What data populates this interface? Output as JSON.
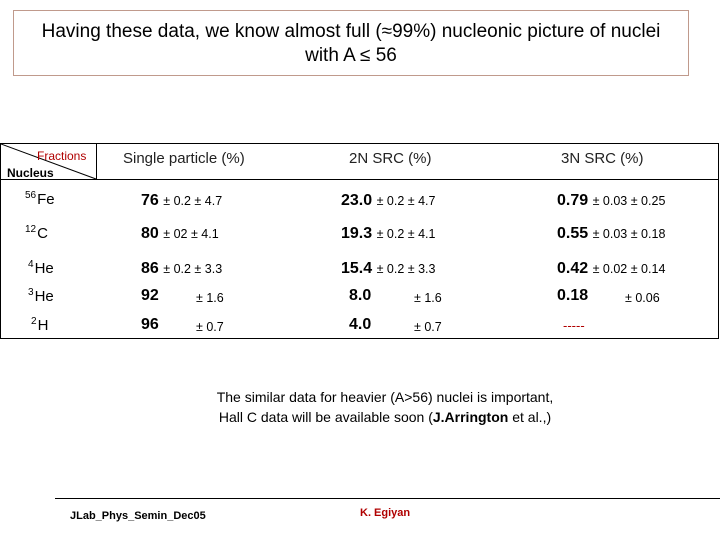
{
  "title": {
    "line1": "Having these data, we know almost full (≈99%) nucleonic picture of nuclei",
    "line2": "with A ≤ 56"
  },
  "table": {
    "corner": {
      "fractions_label": "Fractions",
      "nucleus_label": "Nucleus"
    },
    "headers": [
      "Single particle (%)",
      "2N SRC (%)",
      "3N SRC (%)"
    ],
    "rows": [
      {
        "mass": "56",
        "element": "Fe",
        "sp": {
          "value": "76",
          "err": "± 0.2 ± 4.7"
        },
        "src2": {
          "value": "23.0",
          "err": "± 0.2 ± 4.7"
        },
        "src3": {
          "value": "0.79",
          "err": "± 0.03 ± 0.25"
        }
      },
      {
        "mass": "12",
        "element": "C",
        "sp": {
          "value": "80",
          "err": "± 02 ± 4.1"
        },
        "src2": {
          "value": "19.3",
          "err": "± 0.2 ± 4.1"
        },
        "src3": {
          "value": "0.55",
          "err": "± 0.03 ± 0.18"
        }
      },
      {
        "mass": "4",
        "element": "He",
        "sp": {
          "value": "86",
          "err": "± 0.2 ± 3.3"
        },
        "src2": {
          "value": "15.4",
          "err": "± 0.2 ± 3.3"
        },
        "src3": {
          "value": "0.42",
          "err": "± 0.02 ± 0.14"
        }
      },
      {
        "mass": "3",
        "element": "He",
        "sp": {
          "value": "92",
          "err": "± 1.6"
        },
        "src2": {
          "value": "8.0",
          "err": "± 1.6"
        },
        "src3": {
          "value": "0.18",
          "err": "± 0.06"
        }
      },
      {
        "mass": "2",
        "element": "H",
        "sp": {
          "value": "96",
          "err": "± 0.7"
        },
        "src2": {
          "value": "4.0",
          "err": "± 0.7"
        },
        "src3": {
          "value": "-----",
          "err": ""
        }
      }
    ]
  },
  "note": {
    "line1": "The similar data for heavier (A>56) nuclei is  important,",
    "line2_prefix": "Hall C data will be  available soon (",
    "line2_bold": "J.Arrington",
    "line2_suffix": " et al.,)"
  },
  "footer": {
    "left": "JLab_Phys_Semin_Dec05",
    "right": "K. Egiyan",
    "right_color": "#b00000"
  }
}
